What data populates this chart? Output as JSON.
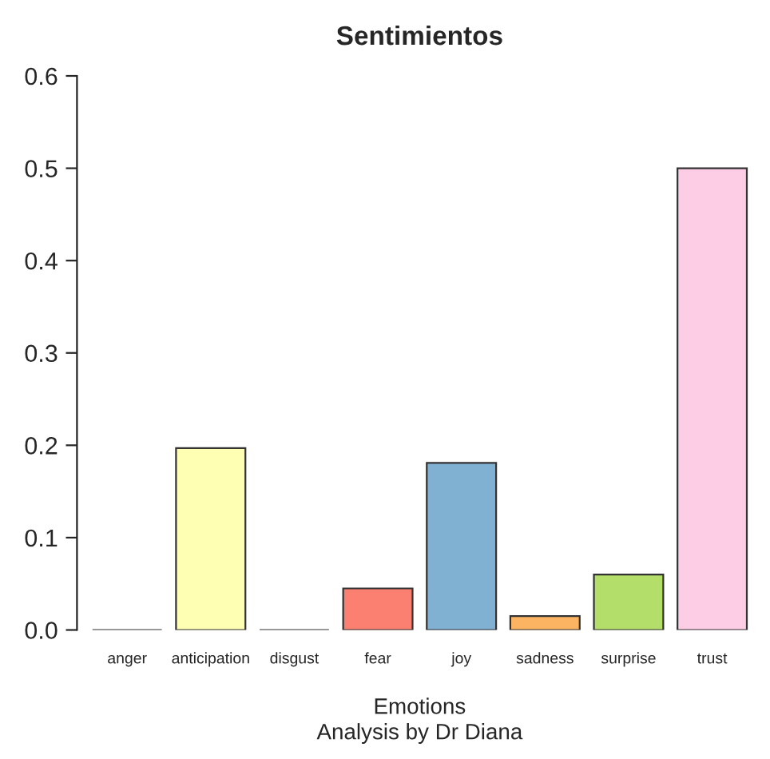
{
  "chart_data": {
    "type": "bar",
    "title": "Sentimientos",
    "xlabel": "Emotions",
    "annotations": [
      "Analysis by Dr Diana"
    ],
    "categories": [
      "anger",
      "anticipation",
      "disgust",
      "fear",
      "joy",
      "sadness",
      "surprise",
      "trust"
    ],
    "values": [
      0,
      0.197,
      0,
      0.045,
      0.181,
      0.015,
      0.06,
      0.5
    ],
    "colors": [
      "#333333",
      "#ffffb3",
      "#333333",
      "#fb8072",
      "#80b1d3",
      "#fdb462",
      "#b3de69",
      "#fccde5"
    ],
    "ylim": [
      0,
      0.6
    ],
    "yticks": [
      {
        "value": 0,
        "label": "0.0"
      },
      0.1,
      0.2,
      0.3,
      0.4,
      0.5,
      0.6
    ],
    "grid": false
  }
}
